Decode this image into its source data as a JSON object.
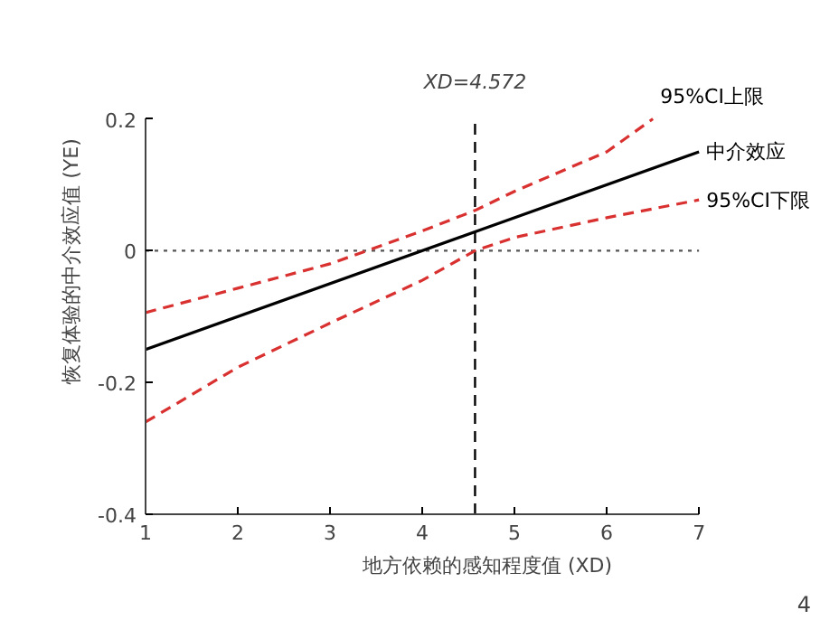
{
  "chart_data": {
    "type": "line",
    "xlabel": "地方依赖的感知程度值 (XD)",
    "ylabel": "恢复体验的中介效应值 (YE)",
    "series": [
      {
        "name": "95%CI上限",
        "color": "#d93030",
        "line_style": "dashed",
        "x": [
          1,
          2,
          3,
          4,
          4.572,
          5,
          6,
          6.5
        ],
        "values": [
          -0.094,
          -0.057,
          -0.02,
          0.03,
          0.061,
          0.09,
          0.15,
          0.2
        ]
      },
      {
        "name": "中介效应",
        "color": "#000000",
        "line_style": "solid",
        "x": [
          1,
          7
        ],
        "values": [
          -0.15,
          0.15
        ]
      },
      {
        "name": "95%CI下限",
        "color": "#d93030",
        "line_style": "dashed",
        "x": [
          1,
          2,
          3,
          4,
          4.572,
          5,
          6,
          7
        ],
        "values": [
          -0.26,
          -0.177,
          -0.11,
          -0.045,
          0,
          0.02,
          0.05,
          0.077
        ]
      }
    ],
    "xlim": [
      1,
      7
    ],
    "xticks": [
      1,
      2,
      3,
      4,
      5,
      6,
      7
    ],
    "ylim": [
      -0.4,
      0.2
    ],
    "yticks": [
      -0.4,
      -0.2,
      0,
      0.2
    ],
    "ref_lines": [
      {
        "axis": "x",
        "value": 4.572,
        "label": "XD=4.572",
        "color": "#000000",
        "line_style": "dashed"
      },
      {
        "axis": "y",
        "value": 0,
        "color": "#555555",
        "line_style": "dotted"
      }
    ],
    "annotations": [
      "4"
    ],
    "grid": false,
    "marker": "none"
  }
}
